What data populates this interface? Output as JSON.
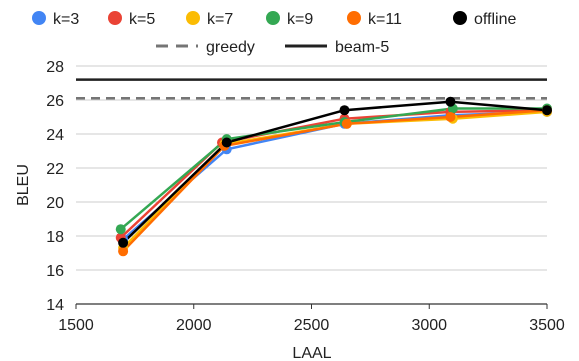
{
  "chart_data": {
    "type": "line",
    "xlabel": "LAAL",
    "ylabel": "BLEU",
    "xlim": [
      1500,
      3500
    ],
    "ylim": [
      14,
      28
    ],
    "xticks": [
      1500,
      2000,
      2500,
      3000,
      3500
    ],
    "yticks": [
      14,
      16,
      18,
      20,
      22,
      24,
      26,
      28
    ],
    "grid": "horizontal",
    "legend_position": "top",
    "series": [
      {
        "name": "k=3",
        "color": "#4285F4",
        "x": [
          1700,
          2140,
          2640,
          3090,
          3500
        ],
        "y": [
          17.8,
          23.1,
          24.6,
          25.1,
          25.3
        ]
      },
      {
        "name": "k=5",
        "color": "#EA4335",
        "x": [
          1690,
          2120,
          2640,
          3090,
          3500
        ],
        "y": [
          17.9,
          23.5,
          24.9,
          25.3,
          25.4
        ]
      },
      {
        "name": "k=7",
        "color": "#FBBC04",
        "x": [
          1700,
          2130,
          2650,
          3100,
          3500
        ],
        "y": [
          17.3,
          23.4,
          24.6,
          24.9,
          25.3
        ]
      },
      {
        "name": "k=9",
        "color": "#34A853",
        "x": [
          1690,
          2140,
          2640,
          3100,
          3500
        ],
        "y": [
          18.4,
          23.7,
          24.7,
          25.5,
          25.5
        ]
      },
      {
        "name": "k=11",
        "color": "#FF6D01",
        "x": [
          1700,
          2130,
          2650,
          3090,
          3500
        ],
        "y": [
          17.1,
          23.3,
          24.6,
          25.0,
          25.4
        ]
      },
      {
        "name": "offline",
        "color": "#000000",
        "x": [
          1700,
          2140,
          2640,
          3090,
          3500
        ],
        "y": [
          17.6,
          23.5,
          25.4,
          25.9,
          25.4
        ]
      }
    ],
    "reference_lines": [
      {
        "name": "greedy",
        "color": "#757575",
        "style": "dashed",
        "y": 26.1
      },
      {
        "name": "beam-5",
        "color": "#212121",
        "style": "solid",
        "y": 27.2
      }
    ]
  }
}
